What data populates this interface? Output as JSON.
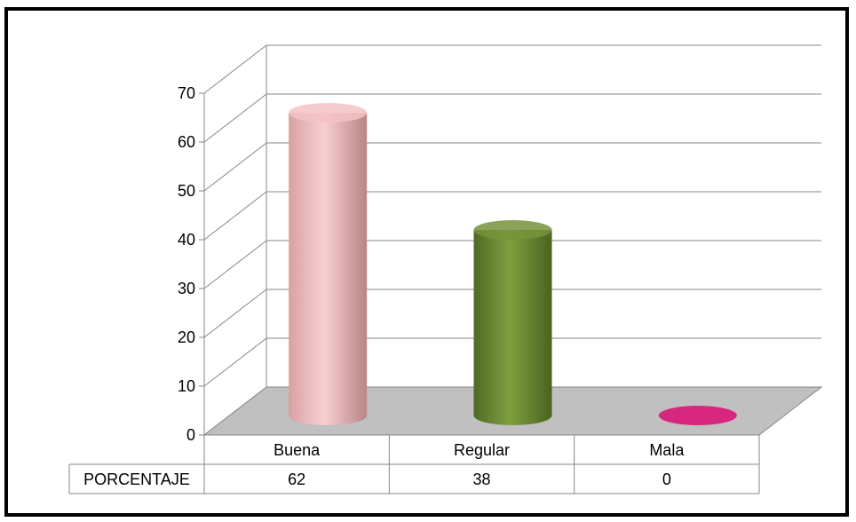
{
  "chart_data": {
    "type": "bar",
    "style": "3d-cylinder",
    "categories": [
      "Buena",
      "Regular",
      "Mala"
    ],
    "series": [
      {
        "name": "PORCENTAJE",
        "values": [
          62,
          38,
          0
        ]
      }
    ],
    "bar_colors": [
      "#f4c2c4",
      "#77933c",
      "#d6267e"
    ],
    "ylim": [
      0,
      70
    ],
    "yticks": [
      0,
      10,
      20,
      30,
      40,
      50,
      60,
      70
    ],
    "grid": true,
    "legend": "none",
    "data_table": {
      "row_labels": [
        "PORCENTAJE"
      ],
      "cells": [
        [
          "62",
          "38",
          "0"
        ]
      ]
    },
    "title": "",
    "xlabel": "",
    "ylabel": ""
  },
  "colors": {
    "frame": "#000000",
    "grid": "#868686",
    "floor": "#c0c0c0",
    "table_border": "#868686"
  }
}
